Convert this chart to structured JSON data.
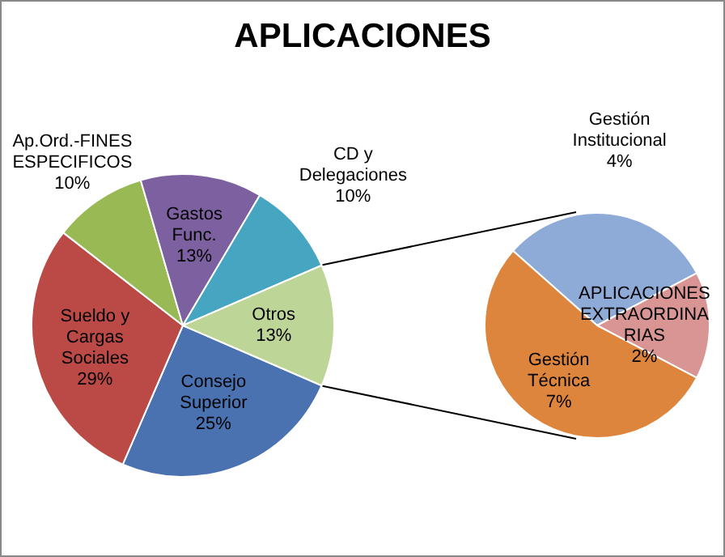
{
  "chart_data": [
    {
      "type": "pie",
      "title": "APLICACIONES",
      "categories": [
        "Consejo Superior",
        "Sueldo y Cargas Sociales",
        "Ap.Ord.-FINES ESPECIFICOS",
        "Gastos Func.",
        "CD y Delegaciones",
        "Otros"
      ],
      "values": [
        25,
        29,
        10,
        13,
        10,
        13
      ],
      "value_labels": [
        "25%",
        "29%",
        "10%",
        "13%",
        "10%",
        "13%"
      ],
      "colors": [
        "#4a72b0",
        "#bb4a47",
        "#98b954",
        "#7d60a0",
        "#46a5c0",
        "#bdd597"
      ],
      "legend": false
    },
    {
      "type": "pie",
      "categories": [
        "Gestión Institucional",
        "APLICACIONES EXTRAORDINARIAS",
        "Gestión Técnica"
      ],
      "values": [
        4,
        2,
        7
      ],
      "value_labels": [
        "4%",
        "2%",
        "7%"
      ],
      "colors": [
        "#8eaad6",
        "#d99593",
        "#dd853d"
      ],
      "legend": false
    }
  ]
}
